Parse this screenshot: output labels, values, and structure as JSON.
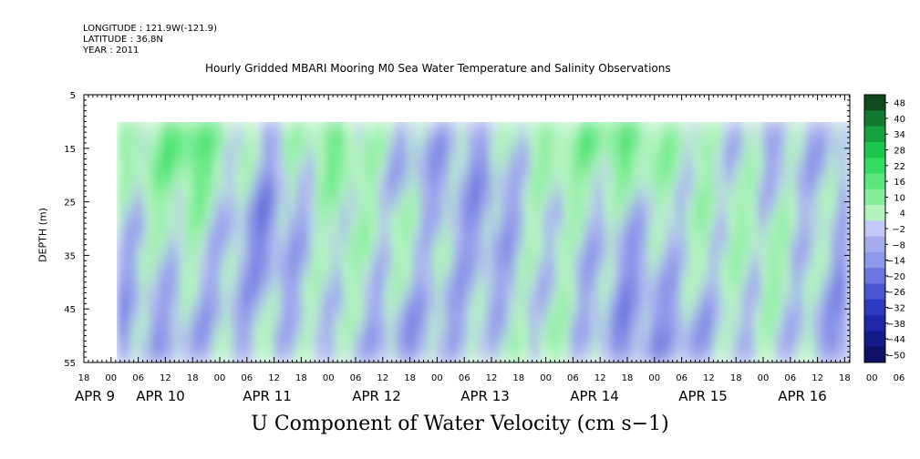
{
  "header": {
    "longitude": "LONGITUDE : 121.9W(-121.9)",
    "latitude": "LATITUDE : 36.8N",
    "year": "YEAR : 2011",
    "title": "Hourly Gridded MBARI Mooring M0 Sea Water Temperature and Salinity Observations"
  },
  "chart_data": {
    "type": "heatmap",
    "title": "Hourly Gridded MBARI Mooring M0 Sea Water Temperature and Salinity Observations",
    "xlabel": "U Component of Water Velocity (cm s−1)",
    "ylabel": "DEPTH (m)",
    "y_ticks": [
      5,
      15,
      25,
      35,
      45,
      55
    ],
    "y_range": [
      5,
      55
    ],
    "y_reversed": true,
    "x_hour_ticks": [
      "18",
      "00",
      "06",
      "12",
      "18",
      "00",
      "06",
      "12",
      "18",
      "00",
      "06",
      "12",
      "18",
      "00",
      "06",
      "12",
      "18",
      "00",
      "06",
      "12",
      "18",
      "00",
      "06",
      "12",
      "18",
      "00",
      "06",
      "12",
      "18",
      "00",
      "06",
      "12",
      "18"
    ],
    "x_date_labels": [
      "APR  9",
      "APR 10",
      "APR 11",
      "APR 12",
      "APR 13",
      "APR 14",
      "APR 15",
      "APR 16"
    ],
    "data_depth_range": [
      10,
      55
    ],
    "colorbar": {
      "levels": [
        48,
        40,
        34,
        28,
        22,
        16,
        10,
        4,
        -2,
        -8,
        -14,
        -20,
        -26,
        -32,
        -38,
        -44,
        -50
      ],
      "colors_positive": [
        "#0f4a1f",
        "#127a30",
        "#16a13d",
        "#1cc84a",
        "#33de5e",
        "#5be77c",
        "#85ee9c",
        "#b2f3c0"
      ],
      "colors_negative": [
        "#c3c8f4",
        "#a4acee",
        "#8f99e9",
        "#6b76de",
        "#4a55d0",
        "#2f3ac2",
        "#1f27a8",
        "#141a8a",
        "#0c1066"
      ]
    },
    "series": [
      {
        "columns": [
          {
            "day": "APR 9 03h",
            "values": [
              6,
              4,
              -2,
              -4,
              -6,
              -8
            ]
          },
          {
            "day": "APR 10 00h",
            "values": [
              22,
              18,
              8,
              2,
              -4,
              -6
            ]
          },
          {
            "day": "APR 10 18h",
            "values": [
              -2,
              -6,
              -14,
              -10,
              -4,
              2
            ]
          },
          {
            "day": "APR 11 12h",
            "values": [
              16,
              12,
              6,
              4,
              2,
              -2
            ]
          },
          {
            "day": "APR 12 06h",
            "values": [
              -4,
              -6,
              4,
              2,
              -6,
              -10
            ]
          },
          {
            "day": "APR 13 00h",
            "values": [
              -2,
              -8,
              -10,
              -6,
              -4,
              2
            ]
          },
          {
            "day": "APR 13 18h",
            "values": [
              12,
              8,
              4,
              2,
              4,
              6
            ]
          },
          {
            "day": "APR 14 12h",
            "values": [
              22,
              10,
              -4,
              -8,
              -10,
              -12
            ]
          },
          {
            "day": "APR 15 06h",
            "values": [
              2,
              4,
              6,
              2,
              -4,
              -8
            ]
          },
          {
            "day": "APR 16 00h",
            "values": [
              -4,
              -2,
              4,
              6,
              4,
              2
            ]
          },
          {
            "day": "APR 16 18h",
            "values": [
              -6,
              -4,
              -2,
              -8,
              -10,
              -12
            ]
          }
        ]
      }
    ]
  }
}
